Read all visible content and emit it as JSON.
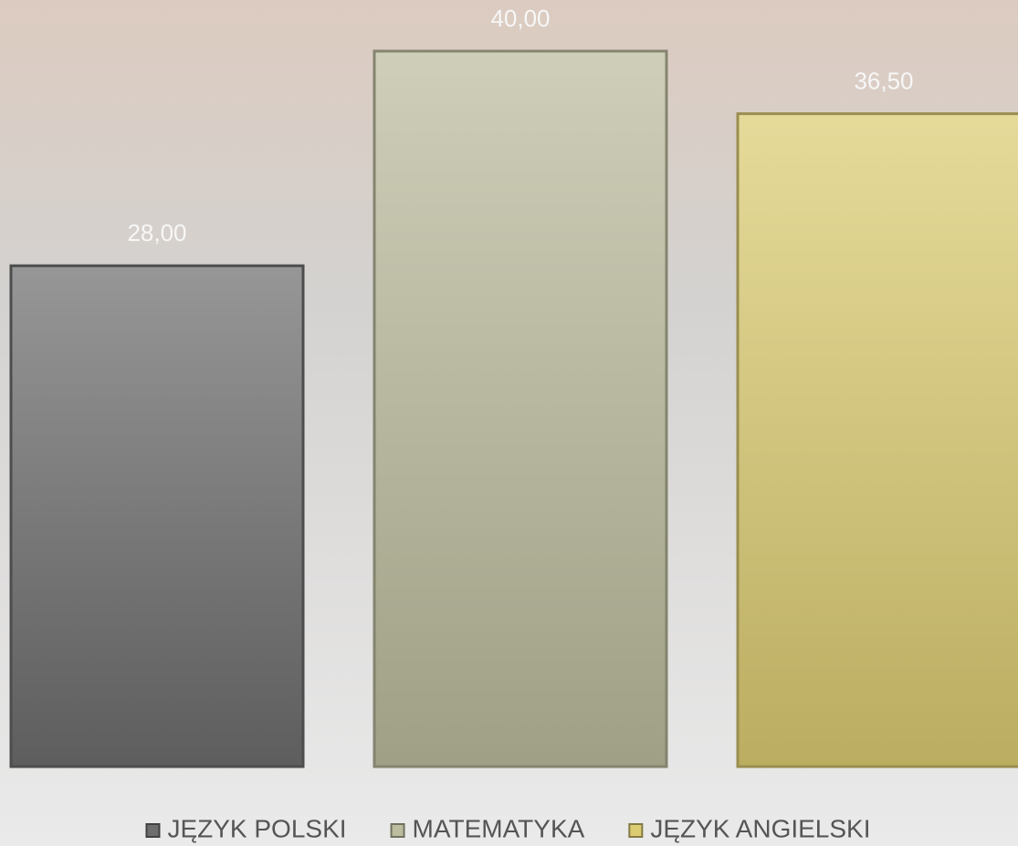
{
  "chart_data": {
    "type": "bar",
    "categories": [
      null
    ],
    "series": [
      {
        "name": "JĘZYK POLSKI",
        "color": "#6e6e6e",
        "values": [
          28
        ],
        "value_labels": [
          "28,00"
        ]
      },
      {
        "name": "MATEMATYKA",
        "color": "#bcbc9e",
        "values": [
          40
        ],
        "value_labels": [
          "40,00"
        ]
      },
      {
        "name": "JĘZYK ANGIELSKI",
        "color": "#dccc72",
        "values": [
          36.5
        ],
        "value_labels": [
          "36,50"
        ]
      }
    ],
    "ylim": [
      0,
      43
    ],
    "legend": "bottom"
  }
}
